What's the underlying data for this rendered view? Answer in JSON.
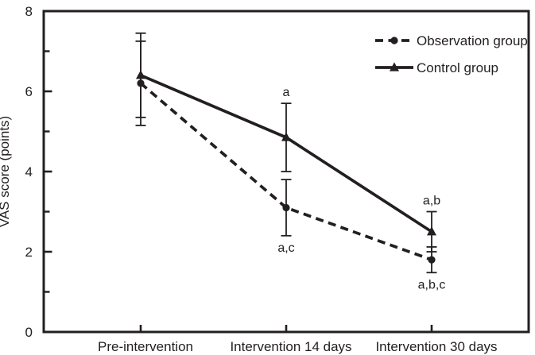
{
  "figure": {
    "background": "#ffffff",
    "ink_color": "#231f20"
  },
  "chart_data": {
    "type": "line",
    "title": "",
    "xlabel": "",
    "ylabel": "VAS score (points)",
    "ylim": [
      0,
      8
    ],
    "y_major_ticks": [
      0,
      2,
      4,
      6,
      8
    ],
    "y_minor_ticks": [
      1,
      3,
      5,
      7
    ],
    "grid": false,
    "frame": "full-box",
    "categories": [
      "Pre-intervention",
      "Intervention 14 days",
      "Intervention 30 days"
    ],
    "legend": {
      "position": "top-right-inside",
      "entries": [
        "Observation group",
        "Control group"
      ]
    },
    "series": [
      {
        "name": "Observation group",
        "values": [
          6.2,
          3.1,
          1.8
        ],
        "error_bars": [
          1.05,
          0.7,
          0.32
        ],
        "line_style": "dashed",
        "marker": "circle",
        "color": "#231f20"
      },
      {
        "name": "Control group",
        "values": [
          6.4,
          4.85,
          2.5
        ],
        "error_bars": [
          1.05,
          0.85,
          0.5
        ],
        "line_style": "solid",
        "marker": "triangle",
        "color": "#231f20"
      }
    ],
    "annotations": [
      {
        "text": "a",
        "series": "Control group",
        "category_index": 1,
        "position": "above"
      },
      {
        "text": "a,c",
        "series": "Observation group",
        "category_index": 1,
        "position": "below"
      },
      {
        "text": "a,b",
        "series": "Control group",
        "category_index": 2,
        "position": "above"
      },
      {
        "text": "a,b,c",
        "series": "Observation group",
        "category_index": 2,
        "position": "below"
      }
    ]
  }
}
